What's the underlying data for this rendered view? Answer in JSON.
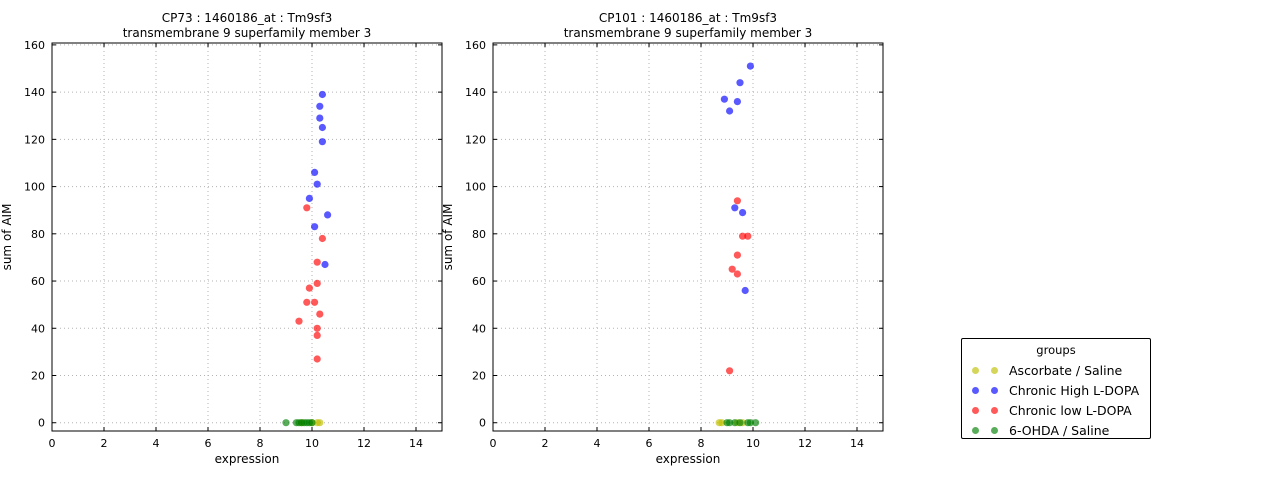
{
  "colors": {
    "ascorbate": "#bfbf00",
    "high_ldopa": "#0000ff",
    "low_ldopa": "#ff0000",
    "ohda": "#008000",
    "marker_opacity": 0.65,
    "grid": "#b3b3b3",
    "axis": "#000000"
  },
  "legend": {
    "title": "groups",
    "entries": [
      {
        "label": "Ascorbate / Saline",
        "series_key": "ascorbate"
      },
      {
        "label": "Chronic High L-DOPA",
        "series_key": "high_ldopa"
      },
      {
        "label": "Chronic low L-DOPA",
        "series_key": "low_ldopa"
      },
      {
        "label": "6-OHDA / Saline",
        "series_key": "ohda"
      }
    ]
  },
  "chart_data": [
    {
      "type": "scatter",
      "title": "CP73 : 1460186_at : Tm9sf3",
      "subtitle": "transmembrane 9 superfamily member 3",
      "xlabel": "expression",
      "ylabel": "sum of AIM",
      "xlim": [
        0,
        15
      ],
      "ylim": [
        -3.5,
        160.8
      ],
      "xticks": [
        0,
        2,
        4,
        6,
        8,
        10,
        12,
        14
      ],
      "yticks": [
        0,
        20,
        40,
        60,
        80,
        100,
        120,
        140,
        160
      ],
      "grid": true,
      "legend_position": "outside-right",
      "series": [
        {
          "key": "ascorbate",
          "name": "Ascorbate / Saline",
          "points": [
            [
              9.6,
              0
            ],
            [
              10.0,
              0
            ],
            [
              10.2,
              0
            ],
            [
              10.3,
              0
            ]
          ]
        },
        {
          "key": "high_ldopa",
          "name": "Chronic High L-DOPA",
          "points": [
            [
              10.4,
              139
            ],
            [
              10.3,
              134
            ],
            [
              10.3,
              129
            ],
            [
              10.4,
              125
            ],
            [
              10.4,
              119
            ],
            [
              10.1,
              106
            ],
            [
              10.2,
              101
            ],
            [
              9.9,
              95
            ],
            [
              10.6,
              88
            ],
            [
              10.1,
              83
            ],
            [
              10.5,
              67
            ]
          ]
        },
        {
          "key": "low_ldopa",
          "name": "Chronic low L-DOPA",
          "points": [
            [
              9.8,
              91
            ],
            [
              10.4,
              78
            ],
            [
              10.2,
              68
            ],
            [
              10.2,
              59
            ],
            [
              9.9,
              57
            ],
            [
              9.8,
              51
            ],
            [
              10.1,
              51
            ],
            [
              10.3,
              46
            ],
            [
              9.5,
              43
            ],
            [
              10.2,
              40
            ],
            [
              10.2,
              37
            ],
            [
              10.2,
              27
            ]
          ]
        },
        {
          "key": "ohda",
          "name": "6-OHDA / Saline",
          "points": [
            [
              9.0,
              0
            ],
            [
              9.4,
              0
            ],
            [
              9.5,
              0
            ],
            [
              9.6,
              0
            ],
            [
              9.7,
              0
            ],
            [
              9.8,
              0
            ],
            [
              9.9,
              0
            ],
            [
              10.0,
              0
            ]
          ]
        }
      ]
    },
    {
      "type": "scatter",
      "title": "CP101 : 1460186_at : Tm9sf3",
      "subtitle": "transmembrane 9 superfamily member 3",
      "xlabel": "expression",
      "ylabel": "sum of AIM",
      "xlim": [
        0,
        15
      ],
      "ylim": [
        -3.5,
        160.8
      ],
      "xticks": [
        0,
        2,
        4,
        6,
        8,
        10,
        12,
        14
      ],
      "yticks": [
        0,
        20,
        40,
        60,
        80,
        100,
        120,
        140,
        160
      ],
      "grid": true,
      "legend_position": "outside-right",
      "series": [
        {
          "key": "ascorbate",
          "name": "Ascorbate / Saline",
          "points": [
            [
              8.7,
              0
            ],
            [
              8.8,
              0
            ],
            [
              9.4,
              0
            ],
            [
              9.6,
              0
            ]
          ]
        },
        {
          "key": "high_ldopa",
          "name": "Chronic High L-DOPA",
          "points": [
            [
              9.9,
              151
            ],
            [
              9.5,
              144
            ],
            [
              8.9,
              137
            ],
            [
              9.4,
              136
            ],
            [
              9.1,
              132
            ],
            [
              9.3,
              91
            ],
            [
              9.6,
              89
            ],
            [
              9.7,
              56
            ]
          ]
        },
        {
          "key": "low_ldopa",
          "name": "Chronic low L-DOPA",
          "points": [
            [
              9.4,
              94
            ],
            [
              9.8,
              79
            ],
            [
              9.6,
              79
            ],
            [
              9.4,
              71
            ],
            [
              9.2,
              65
            ],
            [
              9.4,
              63
            ],
            [
              9.1,
              22
            ]
          ]
        },
        {
          "key": "ohda",
          "name": "6-OHDA / Saline",
          "points": [
            [
              9.0,
              0
            ],
            [
              9.1,
              0
            ],
            [
              9.3,
              0
            ],
            [
              9.5,
              0
            ],
            [
              9.8,
              0
            ],
            [
              9.9,
              0
            ],
            [
              10.1,
              0
            ]
          ]
        }
      ]
    }
  ]
}
